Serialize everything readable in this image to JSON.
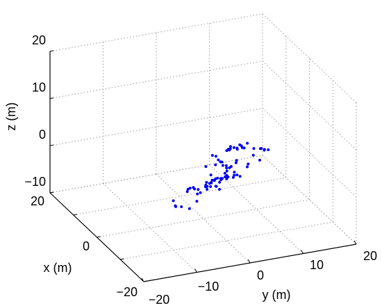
{
  "chart_data": {
    "type": "scatter",
    "projection": "3d",
    "title": "",
    "xlabel": "x (m)",
    "ylabel": "y (m)",
    "zlabel": "z (m)",
    "xlim": [
      -20,
      20
    ],
    "ylim": [
      -20,
      20
    ],
    "zlim": [
      -10,
      20
    ],
    "x_ticks": [
      "−20",
      "0",
      "20"
    ],
    "y_ticks": [
      "−20",
      "−10",
      "0",
      "10",
      "20"
    ],
    "z_ticks": [
      "−10",
      "0",
      "10",
      "20"
    ],
    "grid": true,
    "legend": "none",
    "marker_color": "#0000ee",
    "series": [
      {
        "points": [
          [
            -13.0,
            -4.0,
            10.3
          ],
          [
            -13.6,
            -3.6,
            10.3
          ],
          [
            -14.4,
            -3.5,
            9.9
          ],
          [
            -14.9,
            -3.3,
            9.7
          ],
          [
            -15.3,
            -3.2,
            9.8
          ],
          [
            -16.2,
            -2.8,
            9.4
          ],
          [
            -16.9,
            -2.5,
            9.2
          ],
          [
            -17.6,
            -1.9,
            8.5
          ],
          [
            -18.3,
            -1.7,
            8.2
          ],
          [
            -18.9,
            -1.4,
            8.1
          ],
          [
            -1.6,
            -0.2,
            1.8
          ],
          [
            -3.0,
            1.0,
            2.6
          ],
          [
            -4.1,
            1.9,
            2.8
          ],
          [
            -5.0,
            2.2,
            2.6
          ],
          [
            -5.4,
            2.9,
            3.0
          ],
          [
            -5.2,
            3.9,
            3.5
          ],
          [
            -4.7,
            4.2,
            3.7
          ],
          [
            -4.7,
            2.4,
            1.8
          ],
          [
            -4.5,
            2.1,
            1.3
          ],
          [
            -5.1,
            1.1,
            0.4
          ],
          [
            -4.2,
            0.3,
            0.1
          ],
          [
            -3.5,
            0.8,
            -0.1
          ],
          [
            -1.7,
            0.7,
            -0.1
          ],
          [
            -3.4,
            -0.3,
            -0.9
          ],
          [
            -3.0,
            0.2,
            -1.0
          ],
          [
            -3.0,
            1.4,
            -0.3
          ],
          [
            -1.4,
            1.5,
            -1.6
          ],
          [
            -2.0,
            2.2,
            -1.8
          ],
          [
            -2.1,
            2.4,
            -1.0
          ],
          [
            0.6,
            1.8,
            -3.1
          ],
          [
            1.4,
            1.1,
            -3.8
          ],
          [
            1.5,
            1.1,
            -4.2
          ],
          [
            -0.2,
            1.3,
            -3.4
          ],
          [
            -0.3,
            0.5,
            -2.3
          ],
          [
            -4.3,
            -0.2,
            0.2
          ],
          [
            -5.4,
            0.0,
            -0.6
          ],
          [
            -4.0,
            -1.1,
            -1.1
          ],
          [
            -3.3,
            -0.7,
            -1.5
          ],
          [
            -2.0,
            -0.3,
            -2.2
          ],
          [
            -0.4,
            -0.7,
            -4.2
          ],
          [
            -0.5,
            -1.3,
            -4.3
          ],
          [
            -4.6,
            2.4,
            0.1
          ],
          [
            -2.8,
            3.2,
            -0.3
          ],
          [
            2.6,
            0.2,
            -5.1
          ],
          [
            -2.2,
            2.1,
            -3.2
          ],
          [
            -4.7,
            6.4,
            2.5
          ],
          [
            -2.5,
            7.2,
            0.7
          ],
          [
            -3.7,
            7.8,
            3.6
          ],
          [
            -6.2,
            6.8,
            6.4
          ],
          [
            -6.5,
            7.9,
            6.3
          ],
          [
            -6.5,
            8.1,
            6.3
          ],
          [
            -2.6,
            9.5,
            1.7
          ],
          [
            -1.6,
            10.8,
            3.1
          ],
          [
            -2.6,
            10.4,
            3.8
          ],
          [
            -2.6,
            11.1,
            3.6
          ],
          [
            3.1,
            2.1,
            -5.7
          ],
          [
            2.5,
            3.6,
            -5.1
          ],
          [
            4.7,
            6.2,
            -4.6
          ],
          [
            6.6,
            6.5,
            -5.9
          ],
          [
            4.7,
            7.9,
            -4.6
          ],
          [
            5.0,
            6.9,
            -4.9
          ],
          [
            6.4,
            8.5,
            -6.0
          ],
          [
            6.7,
            7.4,
            -5.5
          ],
          [
            10.2,
            1.5,
            -9.4
          ],
          [
            8.9,
            2.3,
            -8.4
          ],
          [
            9.2,
            1.6,
            -8.2
          ],
          [
            9.2,
            2.2,
            -8.2
          ],
          [
            10.3,
            1.7,
            -9.0
          ],
          [
            12.0,
            4.1,
            -12.8
          ],
          [
            13.5,
            0.8,
            -14.0
          ],
          [
            14.0,
            3.6,
            -15.2
          ],
          [
            14.7,
            2.4,
            -14.9
          ],
          [
            13.4,
            0.3,
            -12.6
          ],
          [
            15.5,
            1.6,
            -14.9
          ],
          [
            13.3,
            10.3,
            -3.9
          ],
          [
            13.1,
            10.9,
            -3.5
          ],
          [
            12.4,
            11.9,
            -3.5
          ],
          [
            12.7,
            12.8,
            -3.1
          ],
          [
            13.1,
            13.5,
            -3.9
          ],
          [
            13.2,
            13.2,
            -3.8
          ],
          [
            14.8,
            11.3,
            -4.5
          ],
          [
            14.4,
            11.3,
            -4.5
          ],
          [
            14.1,
            12.6,
            -4.2
          ],
          [
            15.0,
            13.5,
            -4.1
          ],
          [
            12.9,
            14.0,
            -2.9
          ],
          [
            14.5,
            12.2,
            -4.2
          ],
          [
            15.3,
            11.9,
            -4.3
          ]
        ]
      }
    ]
  }
}
